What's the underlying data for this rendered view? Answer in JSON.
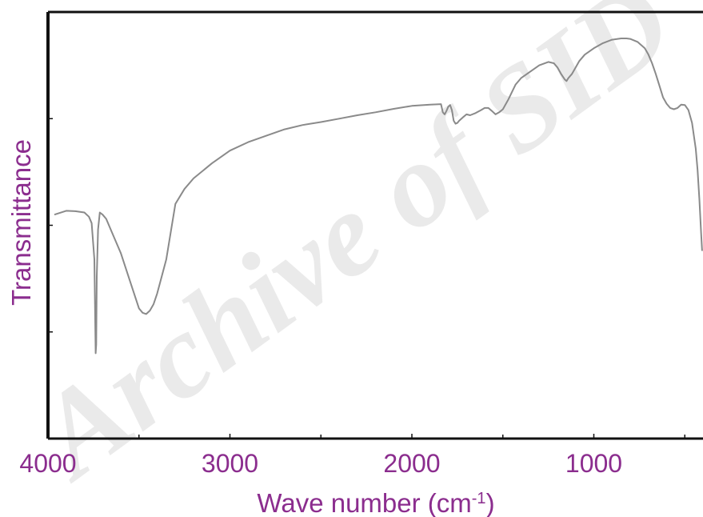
{
  "chart_data": {
    "type": "line",
    "title": "",
    "xlabel": "Wave number (cm",
    "xlabel_sup": "-1",
    "xlabel_close": ")",
    "ylabel": "Transmittance",
    "xlim": [
      4000,
      400
    ],
    "ylim": [
      0,
      100
    ],
    "x_reversed": true,
    "grid": false,
    "x_tick_labels": [
      {
        "value": 4000,
        "label": "4000"
      },
      {
        "value": 3000,
        "label": "3000"
      },
      {
        "value": 2000,
        "label": "2000"
      },
      {
        "value": 1000,
        "label": "1000"
      }
    ],
    "x_minor_ticks": [
      3500,
      2500,
      1500,
      500
    ],
    "y_ticks": [
      25,
      50,
      75
    ],
    "series": [
      {
        "color": "#8a8a8a",
        "x": [
          3965,
          3900,
          3850,
          3800,
          3775,
          3760,
          3745,
          3738,
          3735,
          3732,
          3725,
          3715,
          3700,
          3680,
          3650,
          3600,
          3550,
          3500,
          3480,
          3460,
          3440,
          3420,
          3400,
          3375,
          3350,
          3300,
          3250,
          3200,
          3100,
          3000,
          2900,
          2800,
          2700,
          2600,
          2500,
          2400,
          2300,
          2200,
          2100,
          2000,
          1900,
          1840,
          1830,
          1820,
          1810,
          1800,
          1790,
          1780,
          1770,
          1760,
          1750,
          1740,
          1720,
          1700,
          1680,
          1650,
          1620,
          1600,
          1580,
          1560,
          1540,
          1520,
          1500,
          1470,
          1430,
          1400,
          1350,
          1300,
          1250,
          1220,
          1200,
          1180,
          1160,
          1150,
          1140,
          1120,
          1100,
          1080,
          1050,
          1000,
          950,
          900,
          850,
          820,
          800,
          760,
          720,
          700,
          680,
          660,
          640,
          620,
          600,
          580,
          560,
          540,
          520,
          500,
          480,
          460,
          440,
          430,
          420,
          410,
          405
        ],
        "y": [
          52.5,
          53.4,
          53.3,
          53.0,
          52.0,
          50.5,
          42.0,
          20.0,
          22.0,
          38.0,
          49.0,
          53.0,
          52.5,
          51.5,
          48.5,
          43.5,
          37.0,
          30.5,
          29.5,
          29.2,
          30.0,
          31.5,
          34.0,
          38.0,
          42.0,
          55.0,
          58.5,
          61.0,
          64.5,
          67.5,
          69.5,
          71.0,
          72.5,
          73.5,
          74.2,
          75.0,
          75.8,
          76.5,
          77.3,
          78.0,
          78.3,
          78.4,
          76.5,
          76.0,
          76.8,
          77.8,
          78.2,
          77.0,
          74.5,
          73.8,
          74.0,
          74.5,
          75.3,
          76.0,
          75.8,
          76.3,
          77.0,
          77.5,
          77.5,
          76.8,
          76.0,
          76.5,
          77.2,
          79.5,
          83.0,
          84.5,
          86.0,
          87.5,
          88.3,
          88.0,
          87.0,
          85.5,
          84.2,
          83.8,
          84.5,
          85.5,
          87.0,
          88.5,
          90.0,
          91.5,
          92.7,
          93.5,
          93.8,
          93.8,
          93.7,
          93.0,
          91.5,
          90.0,
          88.0,
          85.5,
          82.8,
          80.0,
          78.5,
          77.5,
          77.2,
          77.5,
          78.3,
          78.2,
          77.0,
          74.0,
          68.0,
          63.0,
          56.0,
          48.0,
          44.0
        ]
      }
    ]
  },
  "watermark": {
    "text": "Archive of SID",
    "color": "#d9d9d9"
  },
  "styles": {
    "axis_color": "#111111",
    "label_color": "#8b2d8e",
    "line_color": "#8a8a8a"
  }
}
